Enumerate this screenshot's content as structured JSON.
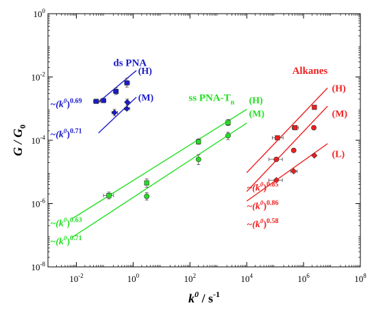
{
  "chart_data": {
    "type": "scatter",
    "xscale": "log",
    "yscale": "log",
    "xlim": [
      0.001,
      100000000
    ],
    "ylim": [
      1e-08,
      1
    ],
    "grid": false,
    "ylabel": {
      "main": "G / G",
      "sub": "0"
    },
    "xlabel": {
      "main": "k",
      "sup": "0",
      "rest": " / s",
      "sup2": "-1"
    },
    "x_ticks": [
      {
        "value": 0.01,
        "base": "10",
        "exp": "-2"
      },
      {
        "value": 1,
        "base": "10",
        "exp": "0"
      },
      {
        "value": 100,
        "base": "10",
        "exp": "2"
      },
      {
        "value": 10000,
        "base": "10",
        "exp": "4"
      },
      {
        "value": 1000000,
        "base": "10",
        "exp": "6"
      },
      {
        "value": 100000000,
        "base": "10",
        "exp": "8"
      }
    ],
    "y_ticks": [
      {
        "value": 1,
        "base": "10",
        "exp": "0"
      },
      {
        "value": 0.01,
        "base": "10",
        "exp": "-2"
      },
      {
        "value": 0.0001,
        "base": "10",
        "exp": "-4"
      },
      {
        "value": 1e-06,
        "base": "10",
        "exp": "-6"
      },
      {
        "value": 1e-08,
        "base": "10",
        "exp": "-8"
      }
    ],
    "groups": [
      {
        "label": "ds PNA",
        "color": "#1a1acc",
        "label_x": 0.2,
        "label_y": 0.022
      },
      {
        "label": "ss PNA-T",
        "label_sub": "n",
        "color": "#22e022",
        "label_x": 90,
        "label_y": 0.00175
      },
      {
        "label": "Alkanes",
        "color": "#ee2020",
        "label_x": 400000,
        "label_y": 0.0125
      }
    ],
    "series": [
      {
        "name": "(H)",
        "group": 0,
        "color": "#1a1acc",
        "marker": "square",
        "points": [
          {
            "x": 0.05,
            "y": 0.0017,
            "xerr": [
              0.04,
              0.065
            ]
          },
          {
            "x": 0.09,
            "y": 0.0018,
            "xerr": [
              0.07,
              0.11
            ]
          },
          {
            "x": 0.25,
            "y": 0.0035,
            "xerr": [
              0.2,
              0.3
            ],
            "yerr": [
              0.0028,
              0.0045
            ]
          },
          {
            "x": 0.6,
            "y": 0.0065,
            "xerr": [
              0.5,
              0.75
            ],
            "yerr": [
              0.0048,
              0.0092
            ]
          }
        ],
        "fit": {
          "x": [
            0.06,
            1.3
          ],
          "y": [
            0.0016,
            0.016
          ]
        },
        "tag_x": 1.5,
        "tag_y": 0.016,
        "exponent_label": {
          "text": "~(k",
          "sup": "0",
          "close": ")",
          "exp": "0.69",
          "x": 0.0012,
          "y": 0.00145
        }
      },
      {
        "name": "(M)",
        "group": 0,
        "color": "#1a1acc",
        "marker": "diamond",
        "points": [
          {
            "x": 0.22,
            "y": 0.00075,
            "xerr": [
              0.18,
              0.28
            ],
            "yerr": [
              0.0006,
              0.00095
            ]
          },
          {
            "x": 0.6,
            "y": 0.001,
            "xerr": [
              0.5,
              0.75
            ]
          },
          {
            "x": 0.62,
            "y": 0.0016,
            "yerr": [
              0.0013,
              0.002
            ]
          }
        ],
        "fit": {
          "x": [
            0.06,
            1.3
          ],
          "y": [
            0.00017,
            0.0023
          ]
        },
        "tag_x": 1.5,
        "tag_y": 0.0023,
        "exponent_label": {
          "text": "~(k",
          "sup": "0",
          "close": ")",
          "exp": "0.71",
          "x": 0.0012,
          "y": 0.00016
        }
      },
      {
        "name": "(H)",
        "group": 1,
        "color": "#22e022",
        "marker": "square",
        "points": [
          {
            "x": 0.14,
            "y": 1.8e-06,
            "xerr": [
              0.09,
              0.2
            ],
            "yerr": [
              1.4e-06,
              2.3e-06
            ]
          },
          {
            "x": 3,
            "y": 4.5e-06,
            "yerr": [
              3.3e-06,
              6e-06
            ]
          },
          {
            "x": 200,
            "y": 9e-05,
            "xerr": [
              170,
              235
            ],
            "yerr": [
              7.5e-05,
              0.00011
            ]
          },
          {
            "x": 2200,
            "y": 0.00036,
            "yerr": [
              0.00029,
              0.00046
            ]
          }
        ],
        "fit": {
          "x": [
            0.007,
            10000
          ],
          "y": [
            3.3e-07,
            0.00095
          ]
        },
        "tag_x": 12000,
        "tag_y": 0.0019,
        "exponent_label": {
          "text": "~(k",
          "sup": "0",
          "close": ")",
          "exp": "0.63",
          "x": 0.0012,
          "y": 2.5e-07
        }
      },
      {
        "name": "(M)",
        "group": 1,
        "color": "#22e022",
        "marker": "circle",
        "points": [
          {
            "x": 3,
            "y": 1.7e-06,
            "yerr": [
              1.3e-06,
              2.2e-06
            ]
          },
          {
            "x": 200,
            "y": 2.5e-05,
            "yerr": [
              1.7e-05,
              3.5e-05
            ]
          },
          {
            "x": 2200,
            "y": 0.00014,
            "yerr": [
              0.000105,
              0.00018
            ]
          }
        ],
        "fit": {
          "x": [
            0.007,
            10000
          ],
          "y": [
            8.5e-08,
            0.00035
          ]
        },
        "tag_x": 12000,
        "tag_y": 0.00072,
        "exponent_label": {
          "text": "~(k",
          "sup": "0",
          "close": ")",
          "exp": "0.71",
          "x": 0.0012,
          "y": 6.7e-08
        }
      },
      {
        "name": "(H)",
        "group": 2,
        "color": "#ee2020",
        "marker": "square",
        "points": [
          {
            "x": 120000,
            "y": 0.00012,
            "xerr": [
              80000,
              190000
            ]
          },
          {
            "x": 500000,
            "y": 0.00025,
            "xerr": [
              400000,
              650000
            ]
          },
          {
            "x": 2400000,
            "y": 0.0011
          }
        ],
        "fit": {
          "x": [
            10000,
            7000000
          ],
          "y": [
            9.5e-06,
            0.0045
          ]
        },
        "tag_x": 10000000,
        "tag_y": 0.0045,
        "exponent_label": {
          "text": "~(k",
          "sup": "0",
          "close": ")",
          "exp": "0.85",
          "x": 10000,
          "y": 3.3e-06
        }
      },
      {
        "name": "(M)",
        "group": 2,
        "color": "#ee2020",
        "marker": "circle",
        "points": [
          {
            "x": 110000,
            "y": 2.5e-05,
            "xerr": [
              60000,
              180000
            ]
          },
          {
            "x": 450000,
            "y": 4.8e-05
          },
          {
            "x": 2300000,
            "y": 0.00025
          }
        ],
        "fit": {
          "x": [
            10000,
            7000000
          ],
          "y": [
            2.4e-06,
            0.0012
          ]
        },
        "tag_x": 10000000,
        "tag_y": 0.00072,
        "exponent_label": {
          "text": "~(k",
          "sup": "0",
          "close": ")",
          "exp": "0.86",
          "x": 10000,
          "y": 8.7e-07
        }
      },
      {
        "name": "(L)",
        "group": 2,
        "color": "#ee2020",
        "marker": "diamond",
        "points": [
          {
            "x": 110000,
            "y": 5.5e-06,
            "xerr": [
              60000,
              180000
            ]
          },
          {
            "x": 450000,
            "y": 1.05e-05,
            "xerr": [
              350000,
              600000
            ]
          },
          {
            "x": 2400000,
            "y": 3.3e-05
          }
        ],
        "fit": {
          "x": [
            10000,
            7000000
          ],
          "y": [
            1.2e-06,
            7.8e-05
          ]
        },
        "tag_x": 10000000,
        "tag_y": 3.75e-05,
        "exponent_label": {
          "text": "~(k",
          "sup": "0",
          "close": ")",
          "exp": "0.58",
          "x": 10000,
          "y": 2.3e-07
        }
      }
    ]
  }
}
